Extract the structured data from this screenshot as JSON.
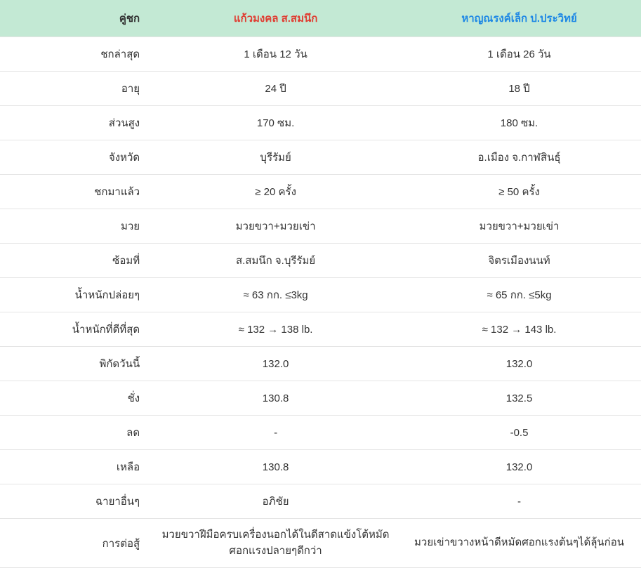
{
  "table": {
    "header_bg": "#c3e9d4",
    "border_color": "#e5e5e5",
    "text_color": "#333333",
    "fighter1_color": "#e03c31",
    "fighter2_color": "#1e88e5",
    "columns": {
      "label": "คู่ชก",
      "fighter1": "แก้วมงคล ส.สมนึก",
      "fighter2": "หาญณรงค์เล็ก ป.ประวิทย์"
    },
    "rows": [
      {
        "label": "ชกล่าสุด",
        "f1": "1 เดือน 12 วัน",
        "f2": "1 เดือน 26 วัน"
      },
      {
        "label": "อายุ",
        "f1": "24 ปี",
        "f2": "18 ปี"
      },
      {
        "label": "ส่วนสูง",
        "f1": "170 ซม.",
        "f2": "180 ซม."
      },
      {
        "label": "จังหวัด",
        "f1": "บุรีรัมย์",
        "f2": "อ.เมือง จ.กาฬสินธุ์"
      },
      {
        "label": "ชกมาแล้ว",
        "f1": "≥ 20 ครั้ง",
        "f2": "≥ 50 ครั้ง"
      },
      {
        "label": "มวย",
        "f1": "มวยขวา+มวยเข่า",
        "f2": "มวยขวา+มวยเข่า"
      },
      {
        "label": "ซ้อมที่",
        "f1": "ส.สมนึก จ.บุรีรัมย์",
        "f2": "จิตรเมืองนนท์"
      },
      {
        "label": "น้ำหนักปล่อยๆ",
        "f1": "≈ 63 กก. ≤3kg",
        "f2": "≈ 65 กก. ≤5kg"
      },
      {
        "label": "น้ำหนักที่ดีที่สุด",
        "f1": "≈ 132 → 138 lb.",
        "f2": "≈ 132 → 143 lb."
      },
      {
        "label": "พิกัดวันนี้",
        "f1": "132.0",
        "f2": "132.0"
      },
      {
        "label": "ชั่ง",
        "f1": "130.8",
        "f2": "132.5"
      },
      {
        "label": "ลด",
        "f1": "-",
        "f2": "-0.5"
      },
      {
        "label": "เหลือ",
        "f1": "130.8",
        "f2": "132.0"
      },
      {
        "label": "ฉายาอื่นๆ",
        "f1": "อภิชัย",
        "f2": "-"
      },
      {
        "label": "การต่อสู้",
        "f1": "มวยขวาฝีมือครบเครื่องนอกได้ในดีสาดแข้งโต้หมัดศอกแรงปลายๆดีกว่า",
        "f2": "มวยเข่าขวางหน้าดีหมัดศอกแรงต้นๆได้ลุ้นก่อน"
      }
    ]
  }
}
